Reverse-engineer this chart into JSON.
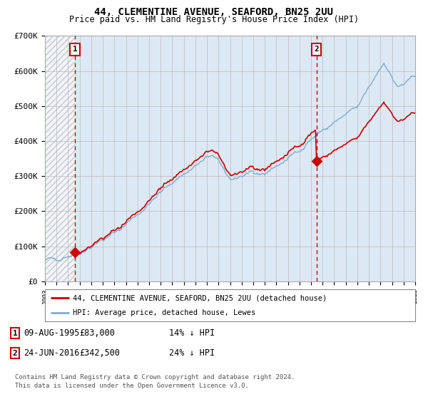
{
  "title": "44, CLEMENTINE AVENUE, SEAFORD, BN25 2UU",
  "subtitle": "Price paid vs. HM Land Registry's House Price Index (HPI)",
  "ylim": [
    0,
    700000
  ],
  "yticks": [
    0,
    100000,
    200000,
    300000,
    400000,
    500000,
    600000,
    700000
  ],
  "ytick_labels": [
    "£0",
    "£100K",
    "£200K",
    "£300K",
    "£400K",
    "£500K",
    "£600K",
    "£700K"
  ],
  "purchase1": {
    "date_num": 1995.6,
    "price": 83000,
    "label": "1",
    "date_str": "09-AUG-1995",
    "pct": "14% ↓ HPI"
  },
  "purchase2": {
    "date_num": 2016.47,
    "price": 342500,
    "label": "2",
    "date_str": "24-JUN-2016",
    "pct": "24% ↓ HPI"
  },
  "hpi_color": "#7aaed6",
  "price_color": "#cc0000",
  "dot_color": "#cc0000",
  "bg_color": "#dde8f5",
  "legend1": "44, CLEMENTINE AVENUE, SEAFORD, BN25 2UU (detached house)",
  "legend2": "HPI: Average price, detached house, Lewes",
  "footer1": "Contains HM Land Registry data © Crown copyright and database right 2024.",
  "footer2": "This data is licensed under the Open Government Licence v3.0.",
  "xmin": 1993,
  "xmax": 2025
}
